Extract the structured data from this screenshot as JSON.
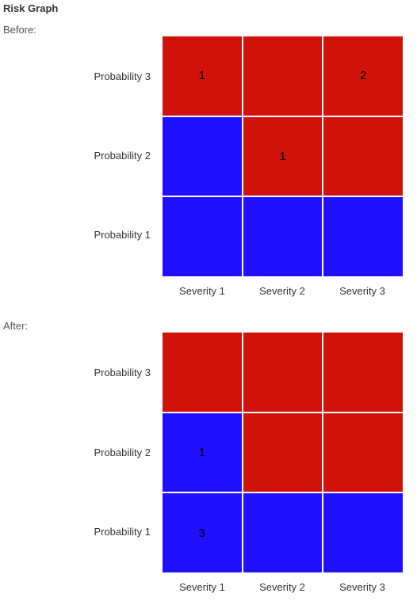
{
  "title": "Risk Graph",
  "colors": {
    "high": "#d0120a",
    "low": "#2010ff"
  },
  "chart_data": [
    {
      "type": "heatmap",
      "label": "Before:",
      "rows": [
        "Probability 3",
        "Probability 2",
        "Probability 1"
      ],
      "columns": [
        "Severity 1",
        "Severity 2",
        "Severity 3"
      ],
      "levels": [
        [
          "high",
          "high",
          "high"
        ],
        [
          "low",
          "high",
          "high"
        ],
        [
          "low",
          "low",
          "low"
        ]
      ],
      "values": [
        [
          "1",
          "",
          "2"
        ],
        [
          "",
          "1",
          ""
        ],
        [
          "",
          "",
          ""
        ]
      ]
    },
    {
      "type": "heatmap",
      "label": "After:",
      "rows": [
        "Probability 3",
        "Probability 2",
        "Probability 1"
      ],
      "columns": [
        "Severity 1",
        "Severity 2",
        "Severity 3"
      ],
      "levels": [
        [
          "high",
          "high",
          "high"
        ],
        [
          "low",
          "high",
          "high"
        ],
        [
          "low",
          "low",
          "low"
        ]
      ],
      "values": [
        [
          "",
          "",
          ""
        ],
        [
          "1",
          "",
          ""
        ],
        [
          "3",
          "",
          ""
        ]
      ]
    }
  ]
}
